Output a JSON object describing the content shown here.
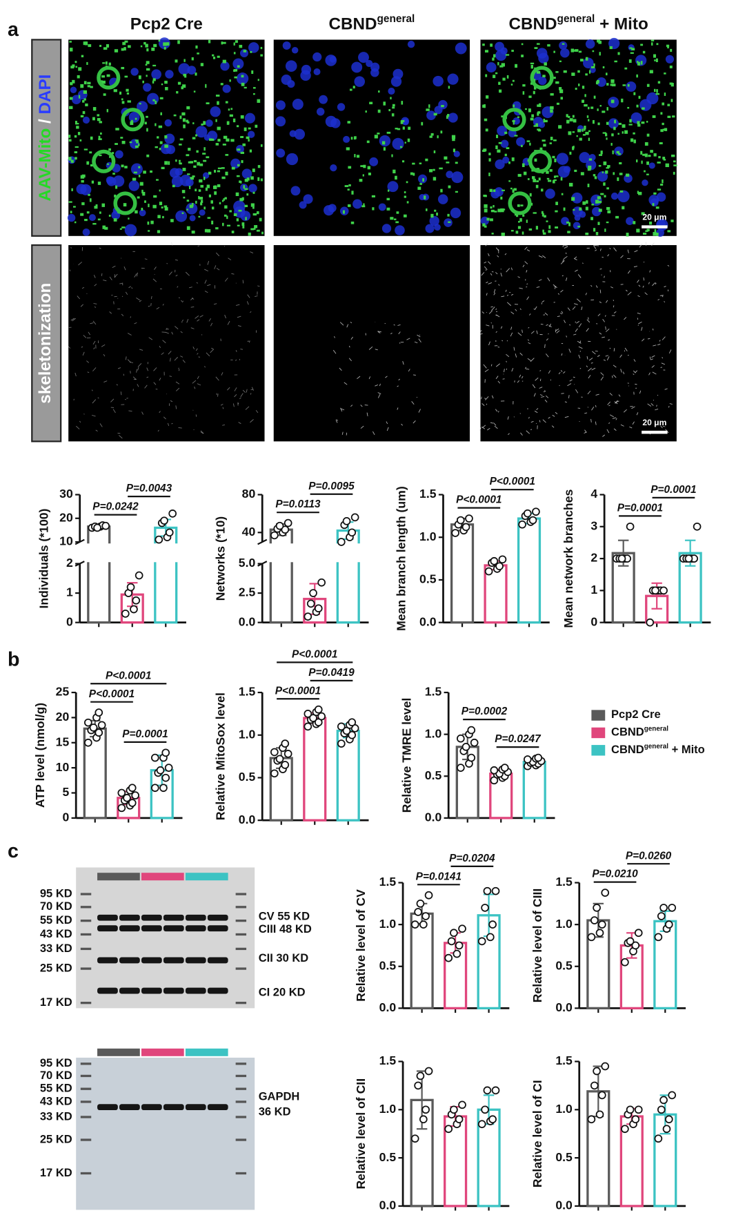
{
  "panels": [
    "a",
    "b",
    "c"
  ],
  "columns": [
    {
      "text": "Pcp2 Cre"
    },
    {
      "text": "CBND",
      "sup": "general"
    },
    {
      "text": "CBND",
      "sup": "general",
      "suffix": " + Mito"
    }
  ],
  "row_labels": [
    {
      "parts": [
        {
          "text": "AAV-Mito",
          "color": "#25d925"
        },
        {
          "text": " / ",
          "color": "#ffffff"
        },
        {
          "text": "DAPI",
          "color": "#2a3cff"
        }
      ]
    },
    {
      "parts": [
        {
          "text": "skeletonization",
          "color": "#ffffff"
        }
      ]
    }
  ],
  "scale_bar": "20 μm",
  "legend": [
    {
      "text": "Pcp2 Cre",
      "color": "#5a5a5a"
    },
    {
      "text": "CBND",
      "sup": "general",
      "color": "#e0467c"
    },
    {
      "text": "CBND",
      "sup": "general",
      "suffix": " + Mito",
      "color": "#3cc3c3"
    }
  ],
  "blots": [
    {
      "markers": [
        "95 KD",
        "70 KD",
        "55 KD",
        "43 KD",
        "33 KD",
        "25 KD",
        "17 KD"
      ],
      "bands": [
        "CV 55 KD",
        "CIII 48 KD",
        "CII 30 KD",
        "CI 20 KD"
      ]
    },
    {
      "markers": [
        "95 KD",
        "70 KD",
        "55 KD",
        "43 KD",
        "33 KD",
        "25 KD",
        "17 KD"
      ],
      "bands": [
        "GAPDH",
        "36 KD"
      ]
    }
  ],
  "chart_data": [
    {
      "type": "bar",
      "ylabel": "Individuals (*100)",
      "categories": [
        null,
        null,
        null
      ],
      "values": [
        16.5,
        0.95,
        16
      ],
      "errors": [
        0.5,
        0.4,
        3.5
      ],
      "points": [
        [
          16,
          16.5,
          17,
          16.5,
          16,
          16.8
        ],
        [
          0.3,
          0.45,
          0.75,
          1.0,
          1.2,
          1.6
        ],
        [
          11,
          12,
          14,
          18,
          19,
          22
        ]
      ],
      "ylim": [
        0,
        30
      ],
      "ybreak": [
        2,
        10
      ],
      "yticks": [
        0,
        1,
        2,
        10,
        20,
        30
      ],
      "comparisons": [
        {
          "label": "P=0.0242",
          "groups": [
            0,
            1
          ]
        },
        {
          "label": "P=0.0043",
          "groups": [
            1,
            2
          ]
        }
      ]
    },
    {
      "type": "bar",
      "ylabel": "Networks (*10)",
      "categories": [
        null,
        null,
        null
      ],
      "values": [
        43,
        2.0,
        42
      ],
      "errors": [
        6,
        1.3,
        9
      ],
      "points": [
        [
          37,
          40,
          43,
          44,
          47,
          50
        ],
        [
          0.5,
          0.9,
          1.2,
          1.6,
          2.5,
          3.4
        ],
        [
          30,
          35,
          40,
          48,
          52,
          56
        ]
      ],
      "ylim": [
        0,
        80
      ],
      "ybreak": [
        5,
        30
      ],
      "yticks": [
        {
          "value": 0,
          "label": "0.0"
        },
        {
          "value": 2.5,
          "label": "2.5"
        },
        {
          "value": 5,
          "label": "5.0"
        },
        40,
        80
      ],
      "comparisons": [
        {
          "label": "P=0.0113",
          "groups": [
            0,
            1
          ]
        },
        {
          "label": "P=0.0095",
          "groups": [
            1,
            2
          ]
        }
      ]
    },
    {
      "type": "bar",
      "ylabel": "Mean branch length (um)",
      "categories": [
        null,
        null,
        null
      ],
      "values": [
        1.15,
        0.67,
        1.22
      ],
      "errors": [
        0.07,
        0.05,
        0.06
      ],
      "points": [
        [
          1.05,
          1.08,
          1.12,
          1.15,
          1.2,
          1.22
        ],
        [
          0.6,
          0.63,
          0.66,
          0.7,
          0.72,
          0.74
        ],
        [
          1.15,
          1.18,
          1.2,
          1.25,
          1.28,
          1.3
        ]
      ],
      "ylim": [
        0,
        1.5
      ],
      "yticks": [
        {
          "value": 0,
          "label": "0.0"
        },
        {
          "value": 0.5,
          "label": "0.5"
        },
        {
          "value": 1,
          "label": "1.0"
        },
        {
          "value": 1.5,
          "label": "1.5"
        }
      ],
      "comparisons": [
        {
          "label": "P<0.0001",
          "groups": [
            0,
            1
          ]
        },
        {
          "label": "P<0.0001",
          "groups": [
            1,
            2
          ]
        }
      ]
    },
    {
      "type": "bar",
      "ylabel": "Mean network branches",
      "categories": [
        null,
        null,
        null
      ],
      "values": [
        2.17,
        0.83,
        2.17
      ],
      "errors": [
        0.4,
        0.4,
        0.4
      ],
      "points": [
        [
          2,
          2,
          2,
          2,
          2,
          3
        ],
        [
          0,
          1,
          1,
          1,
          1,
          1
        ],
        [
          2,
          2,
          2,
          2,
          2,
          3
        ]
      ],
      "ylim": [
        0,
        4
      ],
      "yticks": [
        0,
        1,
        2,
        3,
        4
      ],
      "comparisons": [
        {
          "label": "P=0.0001",
          "groups": [
            0,
            1
          ]
        },
        {
          "label": "P=0.0001",
          "groups": [
            1,
            2
          ]
        }
      ]
    },
    {
      "type": "bar",
      "ylabel": "ATP level (nmol/g)",
      "categories": [
        null,
        null,
        null
      ],
      "values": [
        17.8,
        4,
        9.5
      ],
      "errors": [
        1.6,
        1.3,
        3
      ],
      "points": [
        [
          15,
          16,
          17,
          17.5,
          18,
          18.5,
          19,
          20,
          21
        ],
        [
          2,
          2.5,
          3,
          3.5,
          4,
          4.5,
          5,
          5.5,
          6
        ],
        [
          6,
          6,
          8,
          9,
          9.5,
          10,
          12,
          12,
          13
        ]
      ],
      "ylim": [
        0,
        25
      ],
      "yticks": [
        0,
        5,
        10,
        15,
        20,
        25
      ],
      "comparisons": [
        {
          "label": "P<0.0001",
          "groups": [
            0,
            1
          ]
        },
        {
          "label": "P<0.0001",
          "groups": [
            0,
            2
          ]
        },
        {
          "label": "P=0.0001",
          "groups": [
            1,
            2
          ]
        }
      ]
    },
    {
      "type": "bar",
      "ylabel": "Relative MitoSox level",
      "categories": [
        null,
        null,
        null
      ],
      "values": [
        0.73,
        1.2,
        1.05
      ],
      "errors": [
        0.12,
        0.06,
        0.08
      ],
      "points": [
        [
          0.55,
          0.6,
          0.65,
          0.7,
          0.72,
          0.78,
          0.8,
          0.85,
          0.9
        ],
        [
          1.1,
          1.13,
          1.15,
          1.18,
          1.2,
          1.22,
          1.25,
          1.27,
          1.3
        ],
        [
          0.9,
          0.95,
          1.0,
          1.02,
          1.05,
          1.08,
          1.1,
          1.12,
          1.15
        ]
      ],
      "ylim": [
        0,
        1.5
      ],
      "yticks": [
        {
          "value": 0,
          "label": "0.0"
        },
        {
          "value": 0.5,
          "label": "0.5"
        },
        {
          "value": 1,
          "label": "1.0"
        },
        {
          "value": 1.5,
          "label": "1.5"
        }
      ],
      "comparisons": [
        {
          "label": "P<0.0001",
          "groups": [
            0,
            1
          ]
        },
        {
          "label": "P=0.0419",
          "groups": [
            1,
            2
          ]
        },
        {
          "label": "P<0.0001",
          "groups": [
            0,
            2
          ]
        }
      ]
    },
    {
      "type": "bar",
      "ylabel": "Relative TMRE level",
      "categories": [
        null,
        null,
        null
      ],
      "values": [
        0.85,
        0.53,
        0.67
      ],
      "errors": [
        0.15,
        0.05,
        0.04
      ],
      "points": [
        [
          0.6,
          0.65,
          0.72,
          0.8,
          0.85,
          0.9,
          0.95,
          1.0,
          1.05
        ],
        [
          0.45,
          0.48,
          0.5,
          0.52,
          0.53,
          0.55,
          0.57,
          0.58,
          0.6
        ],
        [
          0.62,
          0.63,
          0.65,
          0.66,
          0.67,
          0.68,
          0.7,
          0.71,
          0.72
        ]
      ],
      "ylim": [
        0,
        1.5
      ],
      "yticks": [
        {
          "value": 0,
          "label": "0.0"
        },
        {
          "value": 0.5,
          "label": "0.5"
        },
        {
          "value": 1,
          "label": "1.0"
        },
        {
          "value": 1.5,
          "label": "1.5"
        }
      ],
      "comparisons": [
        {
          "label": "P=0.0002",
          "groups": [
            0,
            1
          ]
        },
        {
          "label": "P=0.0247",
          "groups": [
            1,
            2
          ]
        }
      ]
    },
    {
      "type": "bar",
      "ylabel": "Relative level of CV",
      "categories": [
        null,
        null,
        null
      ],
      "values": [
        1.13,
        0.78,
        1.11
      ],
      "errors": [
        0.12,
        0.12,
        0.25
      ],
      "points": [
        [
          1.0,
          1.0,
          1.1,
          1.15,
          1.25,
          1.35
        ],
        [
          0.6,
          0.65,
          0.75,
          0.8,
          0.9,
          0.95
        ],
        [
          0.8,
          0.85,
          1.0,
          1.2,
          1.4,
          1.4
        ]
      ],
      "ylim": [
        0,
        1.5
      ],
      "yticks": [
        {
          "value": 0,
          "label": "0.0"
        },
        {
          "value": 0.5,
          "label": "0.5"
        },
        {
          "value": 1,
          "label": "1.0"
        },
        {
          "value": 1.5,
          "label": "1.5"
        }
      ],
      "comparisons": [
        {
          "label": "P=0.0141",
          "groups": [
            0,
            1
          ]
        },
        {
          "label": "P=0.0204",
          "groups": [
            1,
            2
          ]
        }
      ]
    },
    {
      "type": "bar",
      "ylabel": "Relative level of CIII",
      "categories": [
        null,
        null,
        null
      ],
      "values": [
        1.05,
        0.75,
        1.04
      ],
      "errors": [
        0.2,
        0.15,
        0.12
      ],
      "points": [
        [
          0.85,
          0.9,
          1.0,
          1.05,
          1.2,
          1.38
        ],
        [
          0.55,
          0.68,
          0.75,
          0.78,
          0.8,
          0.9
        ],
        [
          0.85,
          0.95,
          1.0,
          1.1,
          1.2,
          1.2
        ]
      ],
      "ylim": [
        0,
        1.5
      ],
      "yticks": [
        {
          "value": 0,
          "label": "0.0"
        },
        {
          "value": 0.5,
          "label": "0.5"
        },
        {
          "value": 1,
          "label": "1.0"
        },
        {
          "value": 1.5,
          "label": "1.5"
        }
      ],
      "comparisons": [
        {
          "label": "P=0.0210",
          "groups": [
            0,
            1
          ]
        },
        {
          "label": "P=0.0260",
          "groups": [
            1,
            2
          ]
        }
      ]
    },
    {
      "type": "bar",
      "ylabel": "Relative level of CII",
      "categories": [
        null,
        null,
        null
      ],
      "values": [
        1.1,
        0.93,
        1.0
      ],
      "errors": [
        0.3,
        0.1,
        0.15
      ],
      "points": [
        [
          0.7,
          0.9,
          1.0,
          1.25,
          1.35,
          1.4
        ],
        [
          0.8,
          0.85,
          0.9,
          0.95,
          1.0,
          1.05
        ],
        [
          0.85,
          0.88,
          0.9,
          1.0,
          1.2,
          1.2
        ]
      ],
      "ylim": [
        0,
        1.5
      ],
      "yticks": [
        {
          "value": 0,
          "label": "0.0"
        },
        {
          "value": 0.5,
          "label": "0.5"
        },
        {
          "value": 1,
          "label": "1.0"
        },
        {
          "value": 1.5,
          "label": "1.5"
        }
      ],
      "comparisons": []
    },
    {
      "type": "bar",
      "ylabel": "Relative level of CI",
      "categories": [
        null,
        null,
        null
      ],
      "values": [
        1.19,
        0.93,
        0.95
      ],
      "errors": [
        0.26,
        0.08,
        0.2
      ],
      "points": [
        [
          0.9,
          0.95,
          1.15,
          1.25,
          1.4,
          1.45
        ],
        [
          0.8,
          0.85,
          0.9,
          0.95,
          1.0,
          1.0
        ],
        [
          0.7,
          0.8,
          0.9,
          1.0,
          1.1,
          1.15
        ]
      ],
      "ylim": [
        0,
        1.5
      ],
      "yticks": [
        {
          "value": 0,
          "label": "0.0"
        },
        {
          "value": 0.5,
          "label": "0.5"
        },
        {
          "value": 1,
          "label": "1.0"
        },
        {
          "value": 1.5,
          "label": "1.5"
        }
      ],
      "comparisons": []
    }
  ]
}
